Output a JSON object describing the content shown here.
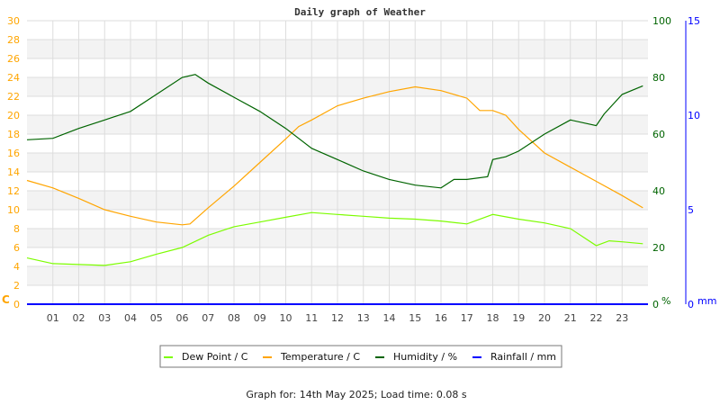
{
  "chart_data": {
    "type": "line",
    "title": "Daily graph of Weather",
    "footer": "Graph for: 14th May 2025; Load time: 0.08 s",
    "x_ticks": [
      "01",
      "02",
      "03",
      "04",
      "05",
      "06",
      "07",
      "08",
      "09",
      "10",
      "11",
      "12",
      "13",
      "14",
      "15",
      "16",
      "17",
      "18",
      "19",
      "20",
      "21",
      "22",
      "23"
    ],
    "xlim": [
      0,
      24
    ],
    "left_axis": {
      "unit": "C",
      "ylim": [
        0,
        30
      ],
      "ticks": [
        0,
        2,
        4,
        6,
        8,
        10,
        12,
        14,
        16,
        18,
        20,
        22,
        24,
        26,
        28,
        30
      ],
      "color": "#ffa500"
    },
    "right_axis_humidity": {
      "unit": "%",
      "ylim": [
        0,
        100
      ],
      "ticks": [
        0,
        20,
        40,
        60,
        80,
        100
      ],
      "color": "#006400"
    },
    "right_axis_rain": {
      "unit": "mm",
      "ylim": [
        0,
        15
      ],
      "ticks": [
        0,
        5,
        10,
        15
      ],
      "color": "#0000ff"
    },
    "grid": true,
    "legend_position": "bottom",
    "series": [
      {
        "name": "Dew Point / C",
        "color": "#7cfc00",
        "axis": "left",
        "x": [
          0,
          1,
          2,
          3,
          4,
          5,
          6,
          7,
          8,
          9,
          10,
          11,
          12,
          13,
          14,
          15,
          16,
          17,
          18,
          19,
          20,
          21,
          22,
          22.5,
          23,
          23.8
        ],
        "y": [
          4.9,
          4.3,
          4.2,
          4.1,
          4.5,
          5.3,
          6.0,
          7.3,
          8.2,
          8.7,
          9.2,
          9.7,
          9.5,
          9.3,
          9.1,
          9.0,
          8.8,
          8.5,
          9.5,
          9.0,
          8.6,
          8.0,
          6.2,
          6.7,
          6.6,
          6.4
        ]
      },
      {
        "name": "Temperature / C",
        "color": "#ffa500",
        "axis": "left",
        "x": [
          0,
          1,
          2,
          3,
          4,
          5,
          6,
          6.3,
          7,
          8,
          9,
          10,
          10.5,
          11,
          12,
          13,
          14,
          15,
          16,
          17,
          17.5,
          18,
          18.5,
          19,
          20,
          21,
          22,
          23,
          23.8
        ],
        "y": [
          13.1,
          12.3,
          11.2,
          10.0,
          9.3,
          8.7,
          8.4,
          8.5,
          10.2,
          12.5,
          15.0,
          17.5,
          18.8,
          19.5,
          21.0,
          21.8,
          22.5,
          23.0,
          22.6,
          21.8,
          20.5,
          20.5,
          20.0,
          18.5,
          16.0,
          14.5,
          13.0,
          11.5,
          10.2
        ]
      },
      {
        "name": "Humidity / %",
        "color": "#006400",
        "axis": "humidity",
        "x": [
          0,
          1,
          2,
          3,
          4,
          5,
          6,
          6.5,
          7,
          8,
          9,
          10,
          11,
          12,
          13,
          14,
          15,
          16,
          16.5,
          17,
          17.8,
          18,
          18.5,
          19,
          20,
          21,
          22,
          22.3,
          23,
          23.8
        ],
        "y": [
          58,
          58.5,
          62,
          65,
          68,
          74,
          80,
          81,
          78,
          73,
          68,
          62,
          55,
          51,
          47,
          44,
          42,
          41,
          44,
          44,
          45,
          51,
          52,
          54,
          60,
          65,
          63,
          67,
          74,
          77
        ]
      },
      {
        "name": "Rainfall / mm",
        "color": "#0000ff",
        "axis": "rain",
        "x": [
          0,
          24
        ],
        "y": [
          0,
          0
        ]
      }
    ]
  }
}
